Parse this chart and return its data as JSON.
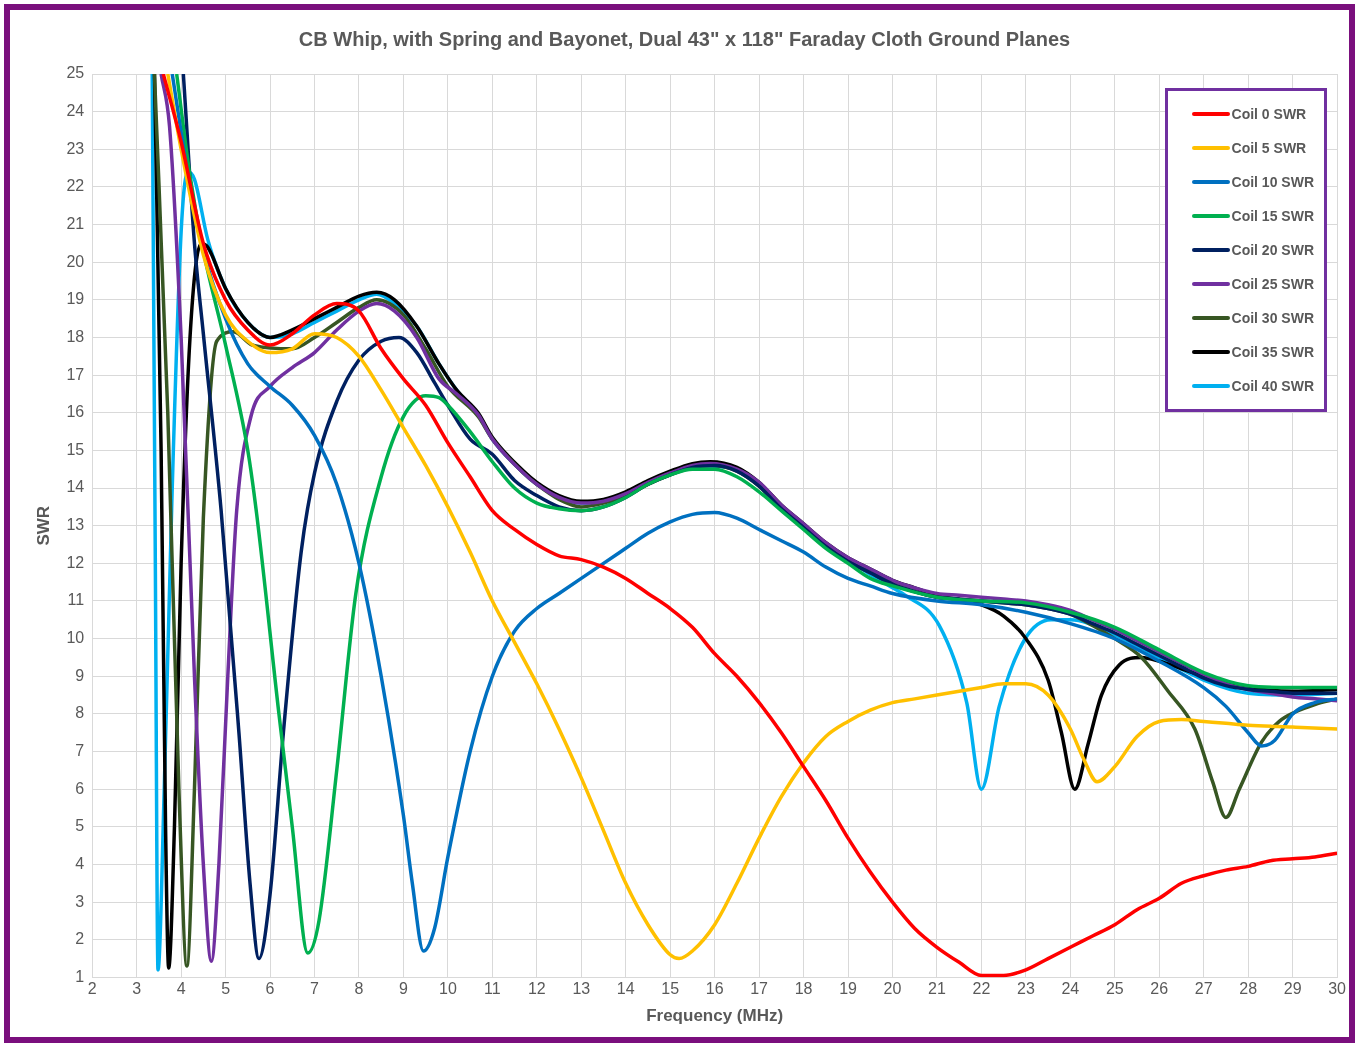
{
  "chart_data": {
    "type": "line",
    "title": "CB Whip, with Spring and Bayonet, Dual 43\" x 118\" Faraday Cloth Ground Planes",
    "xlabel": "Frequency (MHz)",
    "ylabel": "SWR",
    "xlim": [
      2,
      30
    ],
    "xticks": [
      2,
      3,
      4,
      5,
      6,
      7,
      8,
      9,
      10,
      11,
      12,
      13,
      14,
      15,
      16,
      17,
      18,
      19,
      20,
      21,
      22,
      23,
      24,
      25,
      26,
      27,
      28,
      29,
      30
    ],
    "ylim": [
      1,
      25
    ],
    "yticks": [
      1,
      2,
      3,
      4,
      5,
      6,
      7,
      8,
      9,
      10,
      11,
      12,
      13,
      14,
      15,
      16,
      17,
      18,
      19,
      20,
      21,
      22,
      23,
      24,
      25
    ],
    "grid": true,
    "legend": "top right",
    "series": [
      {
        "name": "Coil 0 SWR",
        "color": "#ff0000",
        "x": [
          3.6,
          4,
          4.5,
          5,
          5.5,
          6,
          6.5,
          7,
          7.5,
          8,
          8.5,
          9,
          9.5,
          10,
          10.5,
          11,
          11.5,
          12,
          12.5,
          13,
          13.5,
          14,
          14.5,
          15,
          15.5,
          16,
          16.5,
          17,
          17.5,
          18,
          18.5,
          19,
          19.5,
          20,
          20.5,
          21,
          21.5,
          22,
          22.5,
          23,
          23.5,
          24,
          24.5,
          25,
          25.5,
          26,
          26.5,
          27,
          27.5,
          28,
          28.5,
          29,
          29.5,
          30
        ],
        "values": [
          25,
          23.2,
          20.5,
          19,
          18.2,
          17.8,
          18.1,
          18.6,
          18.9,
          18.7,
          17.7,
          16.9,
          16.2,
          15.2,
          14.3,
          13.4,
          12.9,
          12.5,
          12.2,
          12.1,
          11.9,
          11.6,
          11.2,
          10.8,
          10.3,
          9.6,
          9,
          8.3,
          7.5,
          6.6,
          5.7,
          4.7,
          3.8,
          3,
          2.3,
          1.8,
          1.4,
          1.05,
          1.05,
          1.2,
          1.5,
          1.8,
          2.1,
          2.4,
          2.8,
          3.1,
          3.5,
          3.7,
          3.85,
          3.95,
          4.1,
          4.15,
          4.2,
          4.3
        ]
      },
      {
        "name": "Coil 5 SWR",
        "color": "#ffc000",
        "x": [
          3.7,
          4,
          4.5,
          5,
          5.5,
          6,
          6.5,
          7,
          7.5,
          8,
          8.5,
          9,
          9.5,
          10,
          10.5,
          11,
          11.5,
          12,
          12.5,
          13,
          13.5,
          14,
          14.5,
          15,
          15.2,
          15.5,
          16,
          16.5,
          17,
          17.5,
          18,
          18.5,
          19,
          19.5,
          20,
          20.5,
          21,
          21.5,
          22,
          22.5,
          23,
          23.5,
          24,
          24.3,
          24.6,
          25,
          25.5,
          26,
          26.5,
          27,
          27.5,
          28,
          29,
          30
        ],
        "values": [
          25,
          23,
          20.2,
          18.6,
          17.9,
          17.6,
          17.7,
          18.1,
          18,
          17.5,
          16.6,
          15.6,
          14.6,
          13.5,
          12.3,
          11,
          9.9,
          8.8,
          7.6,
          6.3,
          4.9,
          3.5,
          2.4,
          1.6,
          1.5,
          1.7,
          2.4,
          3.5,
          4.7,
          5.8,
          6.7,
          7.4,
          7.8,
          8.1,
          8.3,
          8.4,
          8.5,
          8.6,
          8.7,
          8.8,
          8.8,
          8.5,
          7.6,
          6.8,
          6.2,
          6.6,
          7.4,
          7.8,
          7.85,
          7.8,
          7.75,
          7.7,
          7.65,
          7.6
        ]
      },
      {
        "name": "Coil 10 SWR",
        "color": "#0070c0",
        "x": [
          3.8,
          4.2,
          4.5,
          5,
          5.5,
          6,
          6.5,
          7,
          7.5,
          8,
          8.5,
          9,
          9.2,
          9.45,
          9.7,
          10,
          10.5,
          11,
          11.5,
          12,
          12.5,
          13,
          13.5,
          14,
          14.5,
          15,
          15.5,
          16,
          16.5,
          17,
          17.5,
          18,
          18.5,
          19,
          19.5,
          20,
          21,
          22,
          23,
          24,
          25,
          26,
          27,
          27.5,
          28,
          28.3,
          28.6,
          29,
          29.5,
          30
        ],
        "values": [
          25,
          22,
          20.3,
          18.5,
          17.3,
          16.7,
          16.2,
          15.4,
          14.1,
          12,
          9,
          5.3,
          3.5,
          1.7,
          2.3,
          4.2,
          7,
          9,
          10.2,
          10.8,
          11.2,
          11.6,
          12,
          12.4,
          12.8,
          13.1,
          13.3,
          13.35,
          13.2,
          12.9,
          12.6,
          12.3,
          11.9,
          11.6,
          11.4,
          11.2,
          11,
          10.9,
          10.7,
          10.4,
          10,
          9.4,
          8.7,
          8.2,
          7.5,
          7.15,
          7.3,
          8,
          8.3,
          8.4
        ]
      },
      {
        "name": "Coil 15 SWR",
        "color": "#00b050",
        "x": [
          3.9,
          4.2,
          4.5,
          5,
          5.5,
          5.7,
          6.2,
          6.5,
          6.85,
          7.1,
          7.5,
          7.93,
          8.5,
          9,
          9.5,
          9.8,
          10,
          10.5,
          11,
          11.5,
          12,
          12.5,
          13,
          13.5,
          14,
          14.5,
          15,
          15.5,
          16,
          16.5,
          17,
          17.5,
          18,
          18.5,
          19,
          19.5,
          20,
          21,
          22,
          23,
          24,
          25,
          26,
          27,
          28,
          29,
          30
        ],
        "values": [
          25,
          22.3,
          20.3,
          17.8,
          15,
          13.3,
          8,
          5,
          1.65,
          2.5,
          6.5,
          11.2,
          14.3,
          15.9,
          16.45,
          16.4,
          16.2,
          15.5,
          14.7,
          14,
          13.6,
          13.45,
          13.4,
          13.5,
          13.75,
          14.1,
          14.35,
          14.5,
          14.5,
          14.3,
          13.9,
          13.4,
          12.9,
          12.4,
          12,
          11.6,
          11.4,
          11.1,
          11,
          10.95,
          10.7,
          10.3,
          9.7,
          9.1,
          8.75,
          8.7,
          8.7
        ]
      },
      {
        "name": "Coil 20 SWR",
        "color": "#002060",
        "x": [
          4.05,
          4.3,
          4.5,
          4.9,
          5.3,
          5.55,
          5.75,
          6,
          6.3,
          6.7,
          7,
          7.5,
          8,
          8.5,
          8.9,
          9.3,
          9.7,
          10,
          10.5,
          11,
          11.5,
          12,
          12.5,
          13,
          13.5,
          14,
          14.5,
          15,
          15.5,
          16,
          16.5,
          17,
          17.5,
          18,
          18.5,
          19,
          19.5,
          20,
          20.5,
          21,
          21.5,
          22,
          22.5,
          23,
          23.5,
          24,
          24.5,
          25,
          25.5,
          26,
          26.5,
          27,
          27.5,
          28,
          28.5,
          29,
          29.5,
          30
        ],
        "values": [
          25,
          20.5,
          18.1,
          13.4,
          7.5,
          3.5,
          1.5,
          3.2,
          7.5,
          12.3,
          14.4,
          16.3,
          17.4,
          17.9,
          18,
          17.6,
          16.8,
          16.2,
          15.3,
          14.9,
          14.2,
          13.8,
          13.5,
          13.4,
          13.5,
          13.75,
          14.1,
          14.35,
          14.55,
          14.6,
          14.45,
          14.05,
          13.45,
          12.95,
          12.45,
          12.05,
          11.75,
          11.45,
          11.25,
          11.1,
          11.05,
          11,
          10.95,
          10.9,
          10.8,
          10.65,
          10.4,
          10.15,
          9.85,
          9.55,
          9.25,
          8.95,
          8.75,
          8.65,
          8.6,
          8.55,
          8.55,
          8.55
        ]
      },
      {
        "name": "Coil 25 SWR",
        "color": "#7030a0",
        "x": [
          3.55,
          3.74,
          4,
          4.3,
          4.5,
          4.68,
          4.85,
          5.05,
          5.25,
          5.57,
          6,
          6.5,
          7,
          7.5,
          8,
          8.4,
          8.8,
          9.3,
          9.8,
          10.2,
          10.68,
          11,
          11.7,
          12,
          12.5,
          13,
          13.5,
          14,
          14.5,
          15,
          15.5,
          15.9,
          16.5,
          17,
          17.5,
          18,
          18.5,
          19,
          19.5,
          20,
          20.5,
          21,
          21.5,
          22,
          22.5,
          23,
          23.5,
          24,
          24.5,
          25,
          25.5,
          26,
          26.5,
          27,
          27.5,
          28,
          28.5,
          29,
          29.5,
          30
        ],
        "values": [
          25,
          23.6,
          18,
          9,
          4,
          1.43,
          4,
          9,
          13.4,
          15.9,
          16.7,
          17.2,
          17.6,
          18.2,
          18.7,
          18.9,
          18.7,
          18,
          16.9,
          16.5,
          15.95,
          15.3,
          14.4,
          14.1,
          13.75,
          13.6,
          13.65,
          13.85,
          14.15,
          14.4,
          14.6,
          14.65,
          14.5,
          14.15,
          13.55,
          13.05,
          12.55,
          12.15,
          11.85,
          11.55,
          11.35,
          11.2,
          11.15,
          11.1,
          11.05,
          11,
          10.9,
          10.75,
          10.5,
          10.25,
          9.95,
          9.65,
          9.35,
          9.05,
          8.8,
          8.65,
          8.55,
          8.45,
          8.4,
          8.35
        ]
      },
      {
        "name": "Coil 30 SWR",
        "color": "#375623",
        "x": [
          3.4,
          3.7,
          3.95,
          4.13,
          4.3,
          4.5,
          4.8,
          5.18,
          5.6,
          6.5,
          7,
          7.5,
          8,
          8.4,
          9,
          9.5,
          10,
          10.68,
          11,
          11.7,
          12,
          12.5,
          13,
          13.5,
          14,
          14.5,
          15,
          15.5,
          15.9,
          16.5,
          17,
          17.5,
          18,
          18.5,
          19,
          19.5,
          20,
          20.5,
          21,
          21.5,
          22,
          22.5,
          23,
          23.5,
          24,
          24.5,
          25,
          25.6,
          26.2,
          26.8,
          27.2,
          27.5,
          27.8,
          28.3,
          28.7,
          29.06,
          29.5,
          30
        ],
        "values": [
          25,
          16,
          6,
          1.3,
          6,
          13.2,
          17.9,
          18.15,
          17.8,
          17.7,
          18,
          18.4,
          18.8,
          19,
          18.6,
          17.7,
          16.7,
          15.9,
          15.3,
          14.4,
          14.1,
          13.7,
          13.5,
          13.6,
          13.8,
          14.1,
          14.35,
          14.55,
          14.6,
          14.45,
          14.05,
          13.45,
          12.95,
          12.45,
          12.05,
          11.75,
          11.45,
          11.25,
          11.1,
          11.05,
          11,
          10.95,
          10.9,
          10.8,
          10.65,
          10.35,
          10,
          9.5,
          8.6,
          7.6,
          6.2,
          5.25,
          6,
          7.25,
          7.8,
          8.05,
          8.25,
          8.4
        ]
      },
      {
        "name": "Coil 35 SWR",
        "color": "#000000",
        "x": [
          3.4,
          3.55,
          3.65,
          3.72,
          3.85,
          4,
          4.2,
          4.45,
          4.6,
          5,
          5.5,
          6,
          6.5,
          7,
          7.5,
          8,
          8.4,
          8.8,
          9.3,
          9.8,
          10.2,
          10.68,
          11,
          11.7,
          12,
          12.5,
          13,
          13.5,
          14,
          14.5,
          15,
          15.5,
          15.9,
          16.5,
          17,
          17.5,
          18,
          18.5,
          19,
          19.5,
          20,
          20.5,
          21,
          22,
          22.5,
          23,
          23.5,
          23.8,
          24.1,
          24.4,
          24.7,
          25.1,
          25.6,
          26,
          26.5,
          27,
          28,
          29,
          30
        ],
        "values": [
          25,
          15,
          5,
          1.25,
          5,
          12,
          18,
          20.5,
          20.4,
          19.3,
          18.4,
          18,
          18.2,
          18.5,
          18.8,
          19.1,
          19.2,
          19,
          18.3,
          17.3,
          16.6,
          16,
          15.35,
          14.45,
          14.15,
          13.8,
          13.65,
          13.7,
          13.9,
          14.2,
          14.45,
          14.65,
          14.7,
          14.55,
          14.15,
          13.55,
          13.05,
          12.55,
          12.15,
          11.85,
          11.55,
          11.35,
          11.15,
          10.9,
          10.6,
          10,
          8.9,
          7.5,
          6,
          7.2,
          8.5,
          9.3,
          9.5,
          9.4,
          9.2,
          9,
          8.7,
          8.6,
          8.65
        ]
      },
      {
        "name": "Coil 40 SWR",
        "color": "#00b0f0",
        "x": [
          3.35,
          3.42,
          3.48,
          3.62,
          3.8,
          4,
          4.15,
          4.3,
          4.6,
          5,
          5.5,
          6,
          6.5,
          7,
          7.5,
          8,
          8.4,
          8.8,
          9.3,
          9.8,
          10.2,
          10.68,
          11,
          11.7,
          12,
          12.5,
          13,
          13.5,
          14,
          14.5,
          15,
          15.5,
          16.5,
          17,
          17.5,
          18,
          18.5,
          19,
          19.5,
          20,
          20.29,
          21.05,
          21.67,
          22,
          22.4,
          22.97,
          23.57,
          24,
          25,
          26,
          27,
          28,
          29,
          30
        ],
        "values": [
          25,
          12,
          1.2,
          6,
          14,
          20.8,
          22.4,
          22.2,
          20.6,
          19.3,
          18.4,
          18,
          18.1,
          18.4,
          18.7,
          19,
          19.15,
          18.9,
          18.3,
          17.3,
          16.6,
          15.95,
          15.3,
          14.4,
          14.1,
          13.75,
          13.6,
          13.65,
          13.85,
          14.15,
          14.4,
          14.6,
          14.5,
          14.1,
          13.5,
          13,
          12.5,
          12.1,
          11.7,
          11.35,
          11.15,
          10.35,
          8.3,
          6,
          8.2,
          9.97,
          10.5,
          10.5,
          10.1,
          9.5,
          8.9,
          8.55,
          8.5,
          8.55
        ]
      }
    ]
  }
}
